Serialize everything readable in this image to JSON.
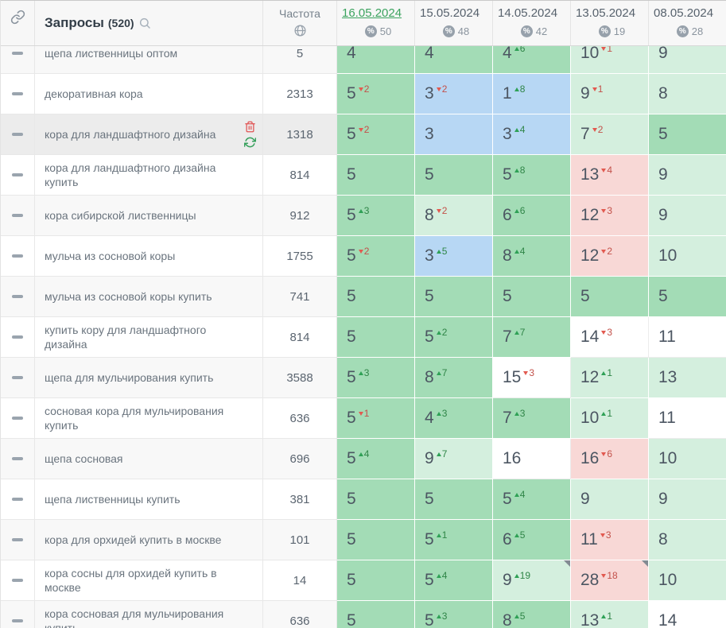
{
  "header": {
    "queries_label": "Запросы",
    "queries_count": "(520)",
    "frequency_label": "Частота",
    "percent_symbol": "%",
    "dates": [
      {
        "label": "16.05.2024",
        "percent": "50",
        "selected": true
      },
      {
        "label": "15.05.2024",
        "percent": "48",
        "selected": false
      },
      {
        "label": "14.05.2024",
        "percent": "42",
        "selected": false
      },
      {
        "label": "13.05.2024",
        "percent": "19",
        "selected": false
      },
      {
        "label": "08.05.2024",
        "percent": "28",
        "selected": false
      }
    ]
  },
  "icons": {
    "top_left": "link-chain",
    "queries_header": "search-magnifier",
    "frequency_header": "globe",
    "date_header": "percent-circle",
    "row_handle": "dash-handle",
    "selected_row_actions": [
      "trash-delete",
      "refresh-update"
    ],
    "note_marker": "folded-corner"
  },
  "colors": {
    "green": "#a3dcb6",
    "lightgreen": "#d4efde",
    "blue": "#b7d7f4",
    "pink": "#f8d8d6",
    "white": "#ffffff",
    "accent": "#3ca35f",
    "up": "#2fa156",
    "down": "#e25a50",
    "up_text": "#2f8547",
    "down_text": "#c2514a"
  },
  "rows": [
    {
      "query": "щепа лиственницы оптом",
      "freq": "5",
      "cells": [
        {
          "v": "4",
          "bg": "green"
        },
        {
          "v": "4",
          "bg": "green"
        },
        {
          "v": "4",
          "chg": "+6",
          "bg": "green"
        },
        {
          "v": "10",
          "chg": "-1",
          "bg": "lightgreen"
        },
        {
          "v": "9",
          "bg": "lightgreen"
        }
      ]
    },
    {
      "query": "декоративная кора",
      "freq": "2313",
      "cells": [
        {
          "v": "5",
          "chg": "-2",
          "bg": "green"
        },
        {
          "v": "3",
          "chg": "-2",
          "bg": "blue"
        },
        {
          "v": "1",
          "chg": "+8",
          "bg": "blue"
        },
        {
          "v": "9",
          "chg": "-1",
          "bg": "lightgreen"
        },
        {
          "v": "8",
          "bg": "lightgreen"
        }
      ]
    },
    {
      "query": "кора для ландшафтного дизайна",
      "freq": "1318",
      "selected": true,
      "actions": [
        "delete",
        "refresh"
      ],
      "cells": [
        {
          "v": "5",
          "chg": "-2",
          "bg": "green"
        },
        {
          "v": "3",
          "bg": "blue"
        },
        {
          "v": "3",
          "chg": "+4",
          "bg": "blue"
        },
        {
          "v": "7",
          "chg": "-2",
          "bg": "lightgreen"
        },
        {
          "v": "5",
          "bg": "green"
        }
      ]
    },
    {
      "query": "кора для ландшафтного дизайна купить",
      "freq": "814",
      "cells": [
        {
          "v": "5",
          "bg": "green"
        },
        {
          "v": "5",
          "bg": "green"
        },
        {
          "v": "5",
          "chg": "+8",
          "bg": "green"
        },
        {
          "v": "13",
          "chg": "-4",
          "bg": "pink"
        },
        {
          "v": "9",
          "bg": "lightgreen"
        }
      ]
    },
    {
      "query": "кора сибирской лиственницы",
      "freq": "912",
      "cells": [
        {
          "v": "5",
          "chg": "+3",
          "bg": "green"
        },
        {
          "v": "8",
          "chg": "-2",
          "bg": "lightgreen"
        },
        {
          "v": "6",
          "chg": "+6",
          "bg": "green"
        },
        {
          "v": "12",
          "chg": "-3",
          "bg": "pink"
        },
        {
          "v": "9",
          "bg": "lightgreen"
        }
      ]
    },
    {
      "query": "мульча из сосновой коры",
      "freq": "1755",
      "cells": [
        {
          "v": "5",
          "chg": "-2",
          "bg": "green"
        },
        {
          "v": "3",
          "chg": "+5",
          "bg": "blue"
        },
        {
          "v": "8",
          "chg": "+4",
          "bg": "green"
        },
        {
          "v": "12",
          "chg": "-2",
          "bg": "pink"
        },
        {
          "v": "10",
          "bg": "lightgreen"
        }
      ]
    },
    {
      "query": "мульча из сосновой коры купить",
      "freq": "741",
      "cells": [
        {
          "v": "5",
          "bg": "green"
        },
        {
          "v": "5",
          "bg": "green"
        },
        {
          "v": "5",
          "bg": "green"
        },
        {
          "v": "5",
          "bg": "green"
        },
        {
          "v": "5",
          "bg": "green"
        }
      ]
    },
    {
      "query": "купить кору для ландшафтного дизайна",
      "freq": "814",
      "cells": [
        {
          "v": "5",
          "bg": "green"
        },
        {
          "v": "5",
          "chg": "+2",
          "bg": "green"
        },
        {
          "v": "7",
          "chg": "+7",
          "bg": "green"
        },
        {
          "v": "14",
          "chg": "-3",
          "bg": "white"
        },
        {
          "v": "11",
          "bg": "white"
        }
      ]
    },
    {
      "query": "щепа для мульчирования купить",
      "freq": "3588",
      "cells": [
        {
          "v": "5",
          "chg": "+3",
          "bg": "green"
        },
        {
          "v": "8",
          "chg": "+7",
          "bg": "green"
        },
        {
          "v": "15",
          "chg": "-3",
          "bg": "white"
        },
        {
          "v": "12",
          "chg": "+1",
          "bg": "lightgreen"
        },
        {
          "v": "13",
          "bg": "lightgreen"
        }
      ]
    },
    {
      "query": "сосновая кора для мульчирования купить",
      "freq": "636",
      "cells": [
        {
          "v": "5",
          "chg": "-1",
          "bg": "green"
        },
        {
          "v": "4",
          "chg": "+3",
          "bg": "green"
        },
        {
          "v": "7",
          "chg": "+3",
          "bg": "green"
        },
        {
          "v": "10",
          "chg": "+1",
          "bg": "lightgreen"
        },
        {
          "v": "11",
          "bg": "white"
        }
      ]
    },
    {
      "query": "щепа сосновая",
      "freq": "696",
      "cells": [
        {
          "v": "5",
          "chg": "+4",
          "bg": "green"
        },
        {
          "v": "9",
          "chg": "+7",
          "bg": "lightgreen"
        },
        {
          "v": "16",
          "bg": "white"
        },
        {
          "v": "16",
          "chg": "-6",
          "bg": "pink"
        },
        {
          "v": "10",
          "bg": "lightgreen"
        }
      ]
    },
    {
      "query": "щепа лиственницы купить",
      "freq": "381",
      "cells": [
        {
          "v": "5",
          "bg": "green"
        },
        {
          "v": "5",
          "bg": "green"
        },
        {
          "v": "5",
          "chg": "+4",
          "bg": "green"
        },
        {
          "v": "9",
          "bg": "lightgreen"
        },
        {
          "v": "9",
          "bg": "lightgreen"
        }
      ]
    },
    {
      "query": "кора для орхидей купить в москве",
      "freq": "101",
      "cells": [
        {
          "v": "5",
          "bg": "green"
        },
        {
          "v": "5",
          "chg": "+1",
          "bg": "green"
        },
        {
          "v": "6",
          "chg": "+5",
          "bg": "green"
        },
        {
          "v": "11",
          "chg": "-3",
          "bg": "pink"
        },
        {
          "v": "8",
          "bg": "lightgreen"
        }
      ]
    },
    {
      "query": "кора сосны для орхидей купить в москве",
      "freq": "14",
      "cells": [
        {
          "v": "5",
          "bg": "green"
        },
        {
          "v": "5",
          "chg": "+4",
          "bg": "green"
        },
        {
          "v": "9",
          "chg": "+19",
          "bg": "lightgreen",
          "corner": true
        },
        {
          "v": "28",
          "chg": "-18",
          "bg": "pink",
          "corner": true
        },
        {
          "v": "10",
          "bg": "lightgreen"
        }
      ]
    },
    {
      "query": "кора сосновая для мульчирования купить",
      "freq": "636",
      "cells": [
        {
          "v": "5",
          "bg": "green"
        },
        {
          "v": "5",
          "chg": "+3",
          "bg": "green"
        },
        {
          "v": "8",
          "chg": "+5",
          "bg": "green"
        },
        {
          "v": "13",
          "chg": "+1",
          "bg": "lightgreen"
        },
        {
          "v": "14",
          "bg": "white"
        }
      ]
    }
  ]
}
